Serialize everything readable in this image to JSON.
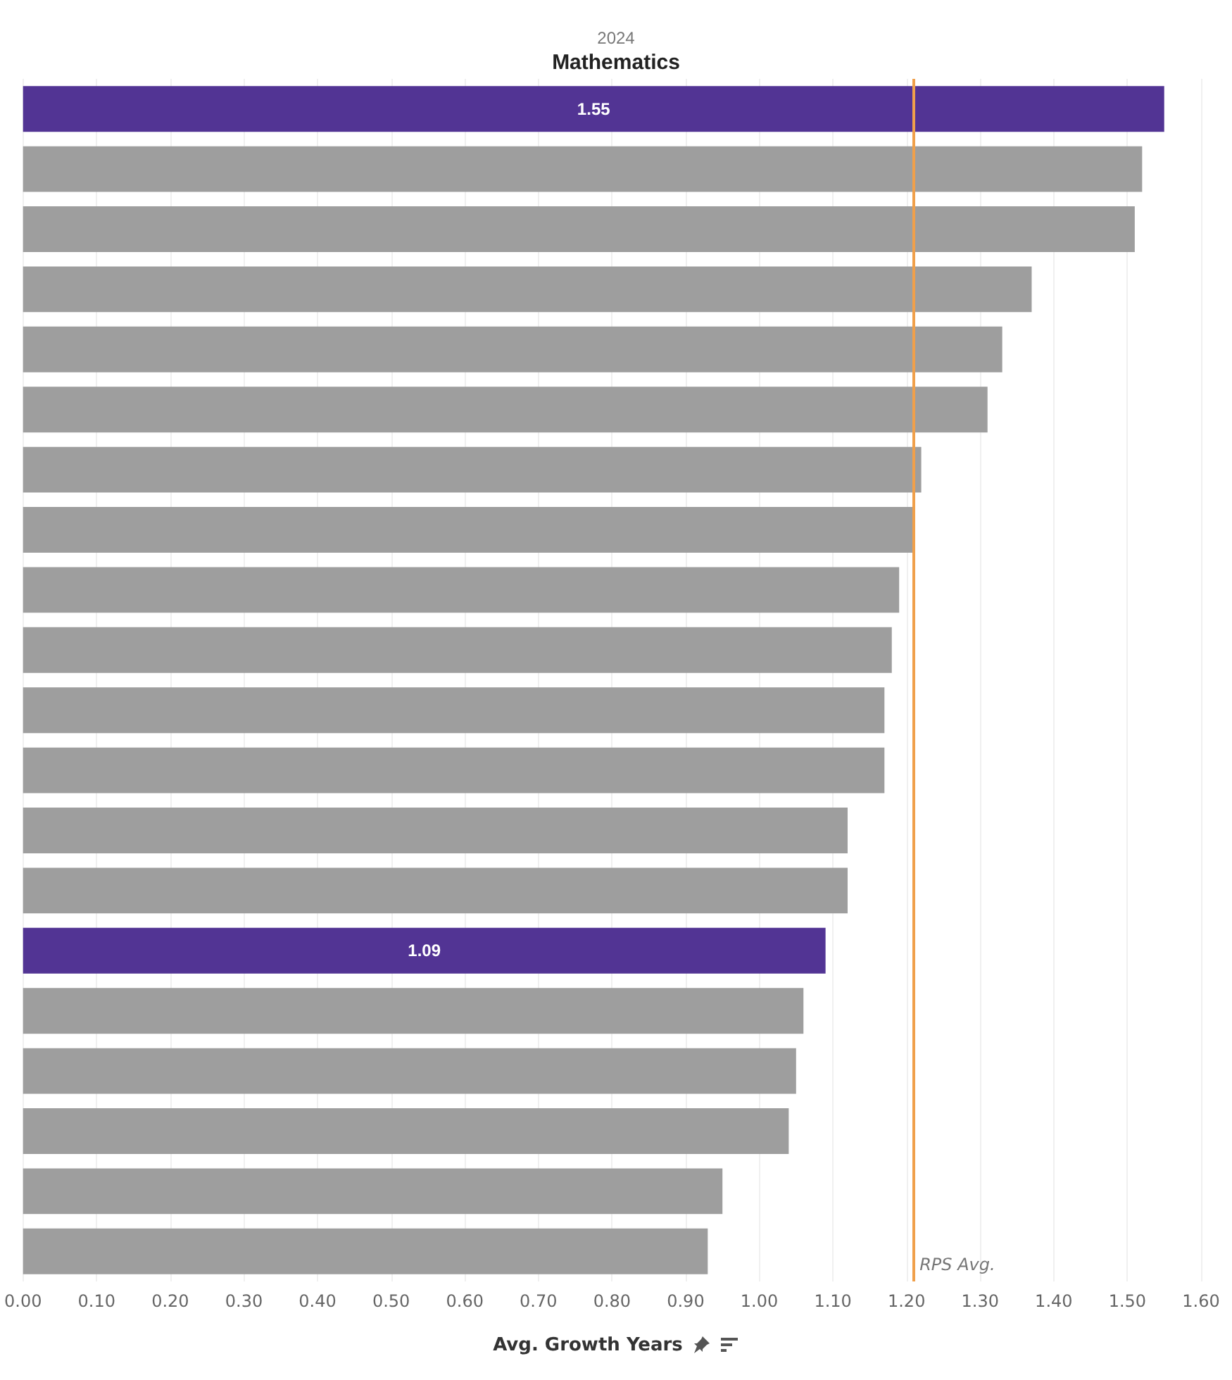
{
  "chart_data": {
    "type": "bar",
    "orientation": "horizontal",
    "title": "Mathematics",
    "subtitle": "2024",
    "xlabel": "Avg. Growth Years",
    "categories": [
      null,
      null,
      null,
      null,
      null,
      null,
      null,
      null,
      null,
      null,
      null,
      null,
      null,
      null,
      null,
      null,
      null,
      null,
      null,
      null
    ],
    "values": [
      1.55,
      1.52,
      1.51,
      1.37,
      1.33,
      1.31,
      1.22,
      1.21,
      1.19,
      1.18,
      1.17,
      1.17,
      1.12,
      1.12,
      1.09,
      1.06,
      1.05,
      1.04,
      0.95,
      0.93
    ],
    "colors": [
      "#523494",
      "#9e9e9e",
      "#9e9e9e",
      "#9e9e9e",
      "#9e9e9e",
      "#9e9e9e",
      "#9e9e9e",
      "#9e9e9e",
      "#9e9e9e",
      "#9e9e9e",
      "#9e9e9e",
      "#9e9e9e",
      "#9e9e9e",
      "#9e9e9e",
      "#523494",
      "#9e9e9e",
      "#9e9e9e",
      "#9e9e9e",
      "#9e9e9e",
      "#9e9e9e"
    ],
    "value_labels": [
      "1.55",
      null,
      null,
      null,
      null,
      null,
      null,
      null,
      null,
      null,
      null,
      null,
      null,
      null,
      "1.09",
      null,
      null,
      null,
      null,
      null
    ],
    "xlim": [
      0,
      1.6
    ],
    "xticks": [
      {
        "value": 0,
        "label": "0.00"
      },
      {
        "value": 0.1,
        "label": "0.10"
      },
      {
        "value": 0.2,
        "label": "0.20"
      },
      {
        "value": 0.3,
        "label": "0.30"
      },
      {
        "value": 0.4,
        "label": "0.40"
      },
      {
        "value": 0.5,
        "label": "0.50"
      },
      {
        "value": 0.6,
        "label": "0.60"
      },
      {
        "value": 0.7,
        "label": "0.70"
      },
      {
        "value": 0.8,
        "label": "0.80"
      },
      {
        "value": 0.9,
        "label": "0.90"
      },
      {
        "value": 1.0,
        "label": "1.00"
      },
      {
        "value": 1.1,
        "label": "1.10"
      },
      {
        "value": 1.2,
        "label": "1.20"
      },
      {
        "value": 1.3,
        "label": "1.30"
      },
      {
        "value": 1.4,
        "label": "1.40"
      },
      {
        "value": 1.5,
        "label": "1.50"
      },
      {
        "value": 1.6,
        "label": "1.60"
      }
    ],
    "ref_lines": [
      {
        "axis": "x",
        "value": 1.21,
        "label": "RPS Avg.",
        "color": "#f0a04b"
      }
    ],
    "grid": "x"
  }
}
